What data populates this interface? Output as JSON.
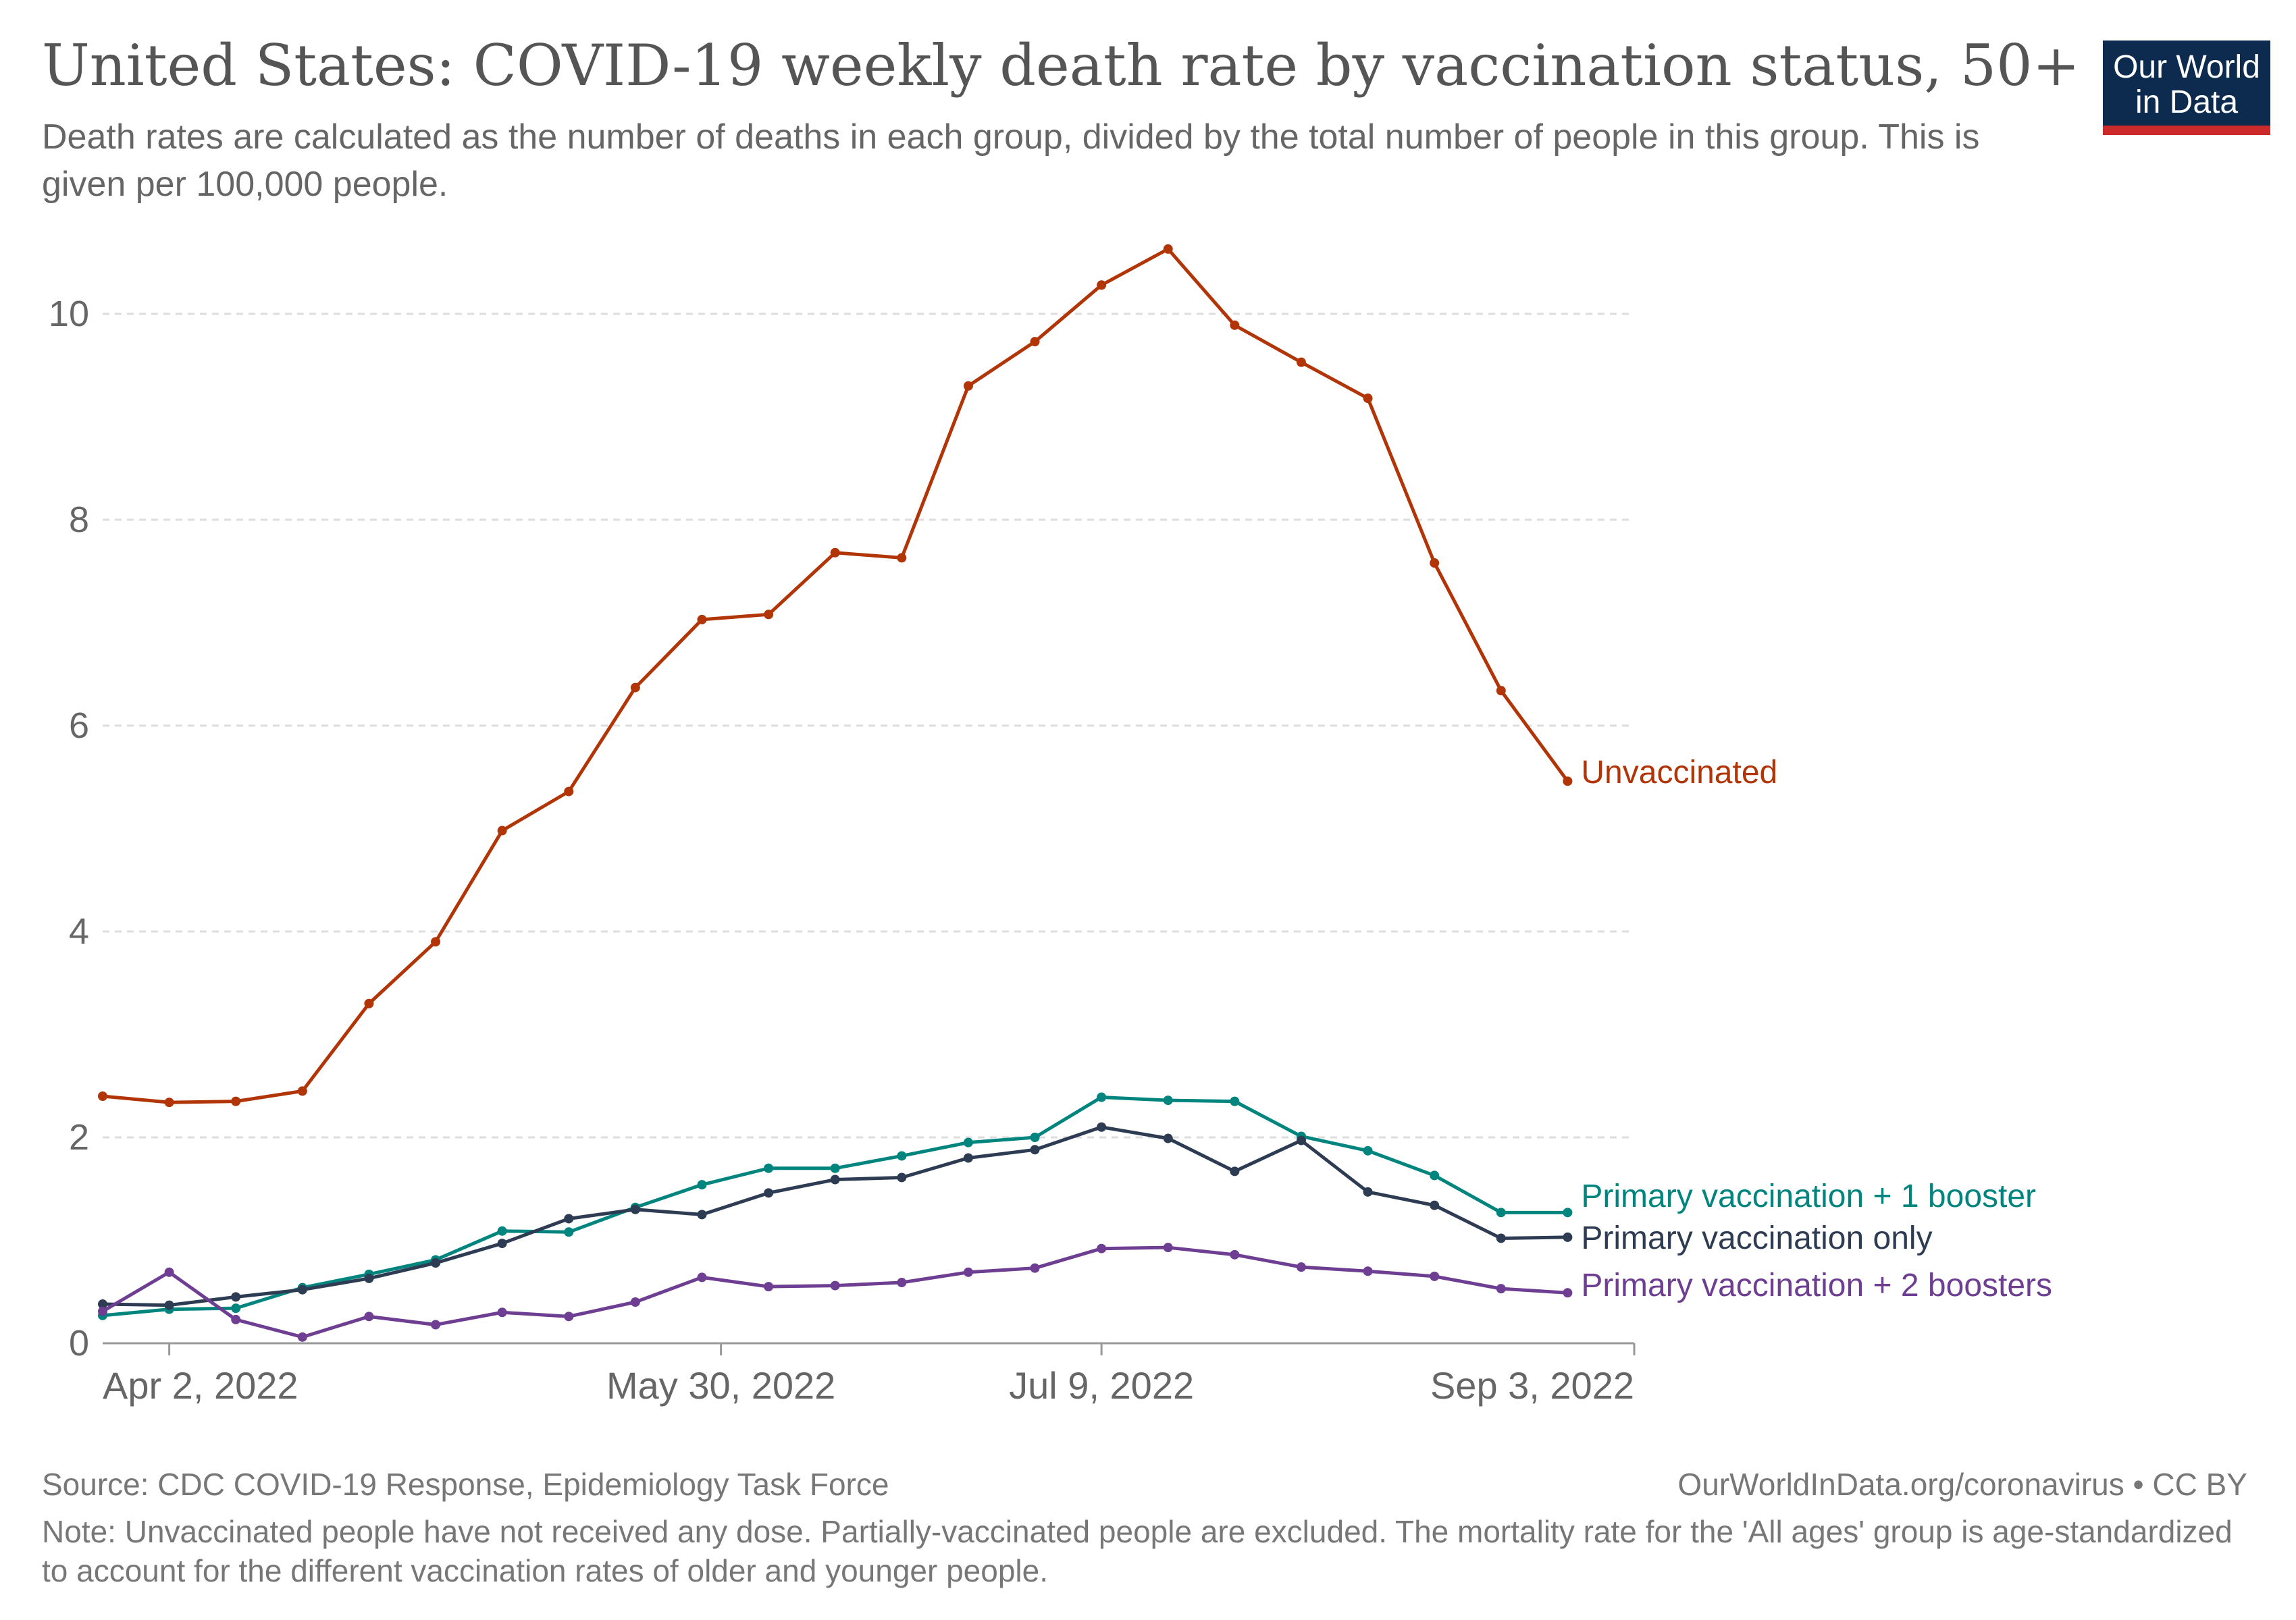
{
  "header": {
    "title": "United States: COVID-19 weekly death rate by vaccination status, 50+",
    "subtitle": "Death rates are calculated as the number of deaths in each group, divided by the total number of people in this group. This is given per 100,000 people."
  },
  "logo": {
    "line1": "Our World",
    "line2": "in Data"
  },
  "footer": {
    "source": "Source: CDC COVID-19 Response, Epidemiology Task Force",
    "license": "OurWorldInData.org/coronavirus • CC BY",
    "note": "Note: Unvaccinated people have not received any dose. Partially-vaccinated people are excluded. The mortality rate for the 'All ages' group is age-standardized to account for the different vaccination rates of older and younger people."
  },
  "colors": {
    "unvaccinated": "#b13507",
    "booster1": "#00847e",
    "primary_only": "#2d3c53",
    "booster2": "#6d3e91",
    "grid": "#dddddd",
    "axis": "#999999",
    "tick_text": "#666666"
  },
  "chart_data": {
    "type": "line",
    "x": [
      "2022-03-26",
      "2022-04-02",
      "2022-04-09",
      "2022-04-16",
      "2022-04-23",
      "2022-04-30",
      "2022-05-07",
      "2022-05-14",
      "2022-05-21",
      "2022-05-28",
      "2022-06-04",
      "2022-06-11",
      "2022-06-18",
      "2022-06-25",
      "2022-07-02",
      "2022-07-09",
      "2022-07-16",
      "2022-07-23",
      "2022-07-30",
      "2022-08-06",
      "2022-08-13",
      "2022-08-20",
      "2022-08-27",
      "2022-09-03"
    ],
    "x_ticks": [
      {
        "date": "2022-04-02",
        "label": "Apr 2, 2022"
      },
      {
        "date": "2022-05-30",
        "label": "May 30, 2022"
      },
      {
        "date": "2022-07-09",
        "label": "Jul 9, 2022"
      },
      {
        "date": "2022-09-03",
        "label": "Sep 3, 2022"
      }
    ],
    "y_ticks": [
      0,
      2,
      4,
      6,
      8,
      10
    ],
    "ylim": [
      0,
      11
    ],
    "grid": "horizontal dashed",
    "legend": "inline labels at line ends",
    "series": [
      {
        "name": "Unvaccinated",
        "color_key": "unvaccinated",
        "values": [
          2.4,
          2.34,
          2.35,
          2.45,
          3.3,
          3.9,
          4.98,
          5.36,
          6.37,
          7.03,
          7.08,
          7.68,
          7.63,
          9.3,
          9.73,
          10.28,
          10.63,
          9.89,
          9.53,
          9.18,
          7.58,
          6.34,
          5.46,
          null
        ]
      },
      {
        "name": "Primary vaccination + 1 booster",
        "color_key": "booster1",
        "values": [
          0.27,
          0.33,
          0.34,
          0.54,
          0.67,
          0.81,
          1.09,
          1.08,
          1.32,
          1.54,
          1.7,
          1.7,
          1.82,
          1.95,
          2.0,
          2.39,
          2.36,
          2.35,
          2.01,
          1.87,
          1.63,
          1.27,
          1.27,
          null
        ]
      },
      {
        "name": "Primary vaccination only",
        "color_key": "primary_only",
        "values": [
          0.38,
          0.37,
          0.45,
          0.52,
          0.63,
          0.78,
          0.97,
          1.21,
          1.3,
          1.25,
          1.46,
          1.59,
          1.61,
          1.8,
          1.88,
          2.1,
          1.99,
          1.67,
          1.97,
          1.47,
          1.34,
          1.02,
          1.03,
          null
        ]
      },
      {
        "name": "Primary vaccination + 2 boosters",
        "color_key": "booster2",
        "values": [
          0.31,
          0.69,
          0.23,
          0.06,
          0.26,
          0.18,
          0.3,
          0.26,
          0.4,
          0.64,
          0.55,
          0.56,
          0.59,
          0.69,
          0.73,
          0.92,
          0.93,
          0.86,
          0.74,
          0.7,
          0.65,
          0.53,
          0.49,
          null
        ]
      }
    ]
  }
}
